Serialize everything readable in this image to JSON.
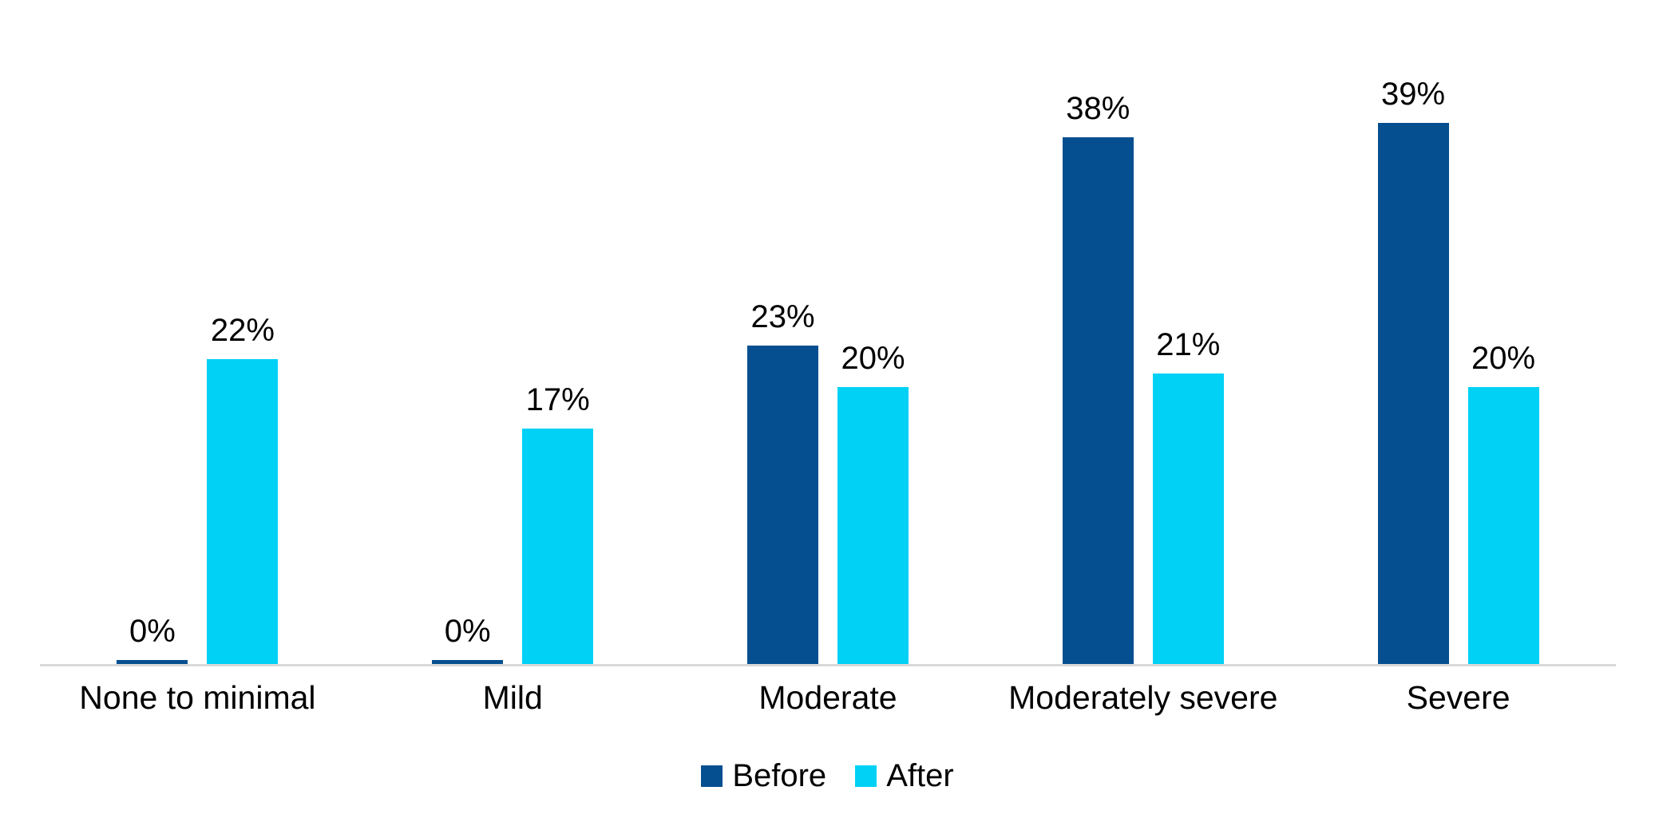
{
  "chart_data": {
    "type": "bar",
    "title": "",
    "categories": [
      "None to minimal",
      "Mild",
      "Moderate",
      "Moderately severe",
      "Severe"
    ],
    "series": [
      {
        "name": "Before",
        "color": "#054F90",
        "values": [
          0,
          0,
          23,
          38,
          39
        ],
        "labels": [
          "0%",
          "0%",
          "23%",
          "38%",
          "39%"
        ]
      },
      {
        "name": "After",
        "color": "#00D1F5",
        "values": [
          22,
          17,
          20,
          21,
          20
        ],
        "labels": [
          "22%",
          "17%",
          "20%",
          "21%",
          "20%"
        ]
      }
    ],
    "value_suffix": "%",
    "ylabel": "",
    "xlabel": "",
    "ylim": [
      0,
      45
    ],
    "grid": false,
    "y_axis_visible": false,
    "axis_line_color": "#D9D9D9",
    "text_color": "#000000",
    "background_color": "#FFFFFF",
    "legend_position": "bottom",
    "legend_entries": [
      "Before",
      "After"
    ]
  }
}
